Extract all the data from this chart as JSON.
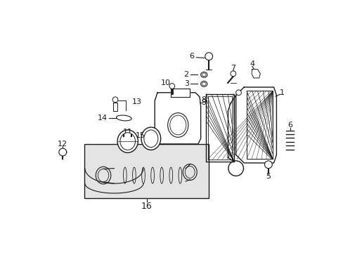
{
  "bg_color": "#ffffff",
  "line_color": "#1a1a1a",
  "box_bg": "#e8e8e8",
  "fig_width": 4.89,
  "fig_height": 3.6,
  "dpi": 100
}
